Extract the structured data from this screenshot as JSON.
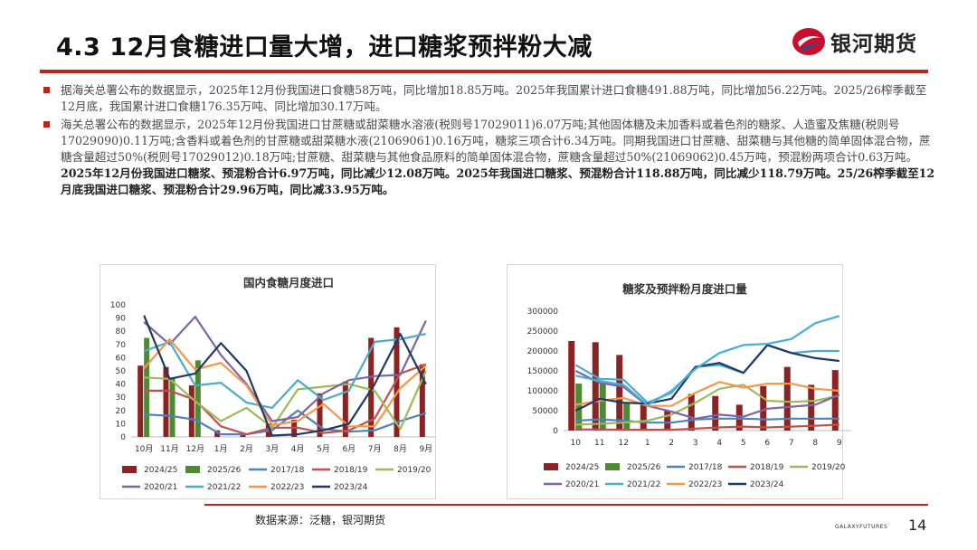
{
  "slide": {
    "title": "4.3 12月食糖进口量大增，进口糖浆预拌粉大减",
    "logo_text": "银河期货",
    "brand_color": "#b22a1e",
    "bullets": [
      {
        "text": "据海关总署公布的数据显示，2025年12月份我国进口食糖58万吨，同比增加18.85万吨。2025年我国累计进口食糖491.88万吨，同比增加56.22万吨。2025/26榨季截至12月底，我国累计进口食糖176.35万吨、同比增加30.17万吨。"
      },
      {
        "text": "海关总署公布的数据显示，2025年12月份我国进口甘蔗糖或甜菜糖水溶液(税则号17029011)6.07万吨;其他固体糖及未加香料或着色剂的糖浆、人造蜜及焦糖(税则号17029090)0.11万吨;含香料或着色剂的甘蔗糖或甜菜糖水液(21069061)0.16万吨，糖浆三项合计6.34万吨。同期我国进口甘蔗糖、甜菜糖与其他糖的简单固体混合物，蔗糖含量超过50%(税则号17029012)0.18万吨;甘蔗糖、甜菜糖与其他食品原料的简单固体混合物，蔗糖含量超过50%(21069062)0.45万吨，预混粉两项合计0.63万吨。",
        "bold": "2025年12月份我国进口糖浆、预混粉合计6.97万吨，同比减少12.08万吨。2025年我国进口糖浆、预混粉合计118.88万吨，同比减少118.79万吨。25/26榨季截至12月底我国进口糖浆、预混粉合计29.96万吨，同比减33.95万吨。"
      }
    ],
    "source": "数据来源：泛糖，银河期货",
    "footer_brand": "GALAXYFUTURES",
    "page_number": "14"
  },
  "chart_data": [
    {
      "type": "bar+line",
      "title": "国内食糖月度进口",
      "categories": [
        "10月",
        "11月",
        "12月",
        "1月",
        "2月",
        "3月",
        "4月",
        "5月",
        "6月",
        "7月",
        "8月",
        "9月"
      ],
      "ylim": [
        0,
        100
      ],
      "yticks": [
        0,
        10,
        20,
        30,
        40,
        50,
        60,
        70,
        80,
        90,
        100
      ],
      "legend_position": "bottom",
      "grid": false,
      "bar_series": [
        {
          "name": "2024/25",
          "color": "#8b2323",
          "values": [
            54,
            53,
            39,
            5,
            2,
            10,
            13,
            33,
            42,
            75,
            83,
            55
          ]
        },
        {
          "name": "2025/26",
          "color": "#4e8a31",
          "values": [
            75,
            45,
            58,
            null,
            null,
            null,
            null,
            null,
            null,
            null,
            null,
            null
          ]
        }
      ],
      "line_series": [
        {
          "name": "2017/18",
          "color": "#4f81bd",
          "values": [
            17,
            16,
            13,
            2,
            2,
            5,
            20,
            6,
            4,
            5,
            12,
            18
          ]
        },
        {
          "name": "2018/19",
          "color": "#c0504d",
          "values": [
            35,
            35,
            28,
            8,
            2,
            7,
            7,
            3,
            5,
            14,
            48,
            55
          ]
        },
        {
          "name": "2019/20",
          "color": "#9bbb59",
          "values": [
            45,
            44,
            27,
            12,
            22,
            7,
            36,
            38,
            40,
            35,
            6,
            50
          ]
        },
        {
          "name": "2020/21",
          "color": "#8064a2",
          "values": [
            87,
            70,
            91,
            62,
            40,
            12,
            15,
            33,
            43,
            46,
            47,
            88
          ]
        },
        {
          "name": "2021/22",
          "color": "#4bacc6",
          "values": [
            65,
            72,
            39,
            41,
            26,
            22,
            43,
            28,
            35,
            72,
            74,
            78
          ]
        },
        {
          "name": "2022/23",
          "color": "#f79646",
          "values": [
            52,
            74,
            51,
            56,
            39,
            9,
            12,
            25,
            8,
            8,
            37,
            54
          ]
        },
        {
          "name": "2023/24",
          "color": "#1f3864",
          "values": [
            92,
            44,
            48,
            71,
            50,
            1,
            2,
            5,
            10,
            40,
            78,
            40
          ]
        }
      ]
    },
    {
      "type": "bar+line",
      "title": "糖浆及预拌粉月度进口量",
      "categories": [
        "10",
        "11",
        "12",
        "1",
        "2",
        "3",
        "4",
        "5",
        "6",
        "7",
        "8",
        "9"
      ],
      "ylim": [
        0,
        300000
      ],
      "yticks": [
        0,
        50000,
        100000,
        150000,
        200000,
        250000,
        300000
      ],
      "legend_position": "bottom",
      "grid": false,
      "bar_series": [
        {
          "name": "2024/25",
          "color": "#8b2323",
          "values": [
            225000,
            222000,
            190000,
            68000,
            50000,
            92000,
            87000,
            65000,
            112000,
            160000,
            115000,
            152000
          ]
        },
        {
          "name": "2025/26",
          "color": "#4e8a31",
          "values": [
            118000,
            120000,
            70000,
            null,
            null,
            null,
            null,
            null,
            null,
            null,
            null,
            null
          ]
        }
      ],
      "line_series": [
        {
          "name": "2017/18",
          "color": "#4f81bd",
          "values": [
            25000,
            28000,
            25000,
            20000,
            20000,
            28000,
            30000,
            30000,
            28000,
            30000,
            30000,
            30000
          ]
        },
        {
          "name": "2018/19",
          "color": "#c0504d",
          "values": [
            3000,
            3000,
            2000,
            2000,
            2000,
            5000,
            8000,
            10000,
            8000,
            10000,
            12000,
            15000
          ]
        },
        {
          "name": "2019/20",
          "color": "#9bbb59",
          "values": [
            15000,
            17000,
            20000,
            25000,
            40000,
            70000,
            105000,
            115000,
            75000,
            72000,
            75000,
            88000
          ]
        },
        {
          "name": "2020/21",
          "color": "#8064a2",
          "values": [
            150000,
            120000,
            110000,
            62000,
            48000,
            30000,
            40000,
            35000,
            55000,
            60000,
            65000,
            90000
          ]
        },
        {
          "name": "2021/22",
          "color": "#4bacc6",
          "values": [
            165000,
            130000,
            128000,
            70000,
            95000,
            160000,
            165000,
            145000,
            215000,
            195000,
            200000,
            200000
          ]
        },
        {
          "name": "2022/23",
          "color": "#f79646",
          "values": [
            65000,
            75000,
            82000,
            62000,
            62000,
            95000,
            122000,
            108000,
            118000,
            118000,
            105000,
            100000
          ]
        },
        {
          "name": "2023/24",
          "color": "#1f3864",
          "values": [
            50000,
            80000,
            70000,
            68000,
            80000,
            160000,
            170000,
            145000,
            215000,
            195000,
            182000,
            175000
          ]
        },
        {
          "name": "2024/25 line",
          "color": "#45aedb",
          "values": [
            138000,
            125000,
            115000,
            64000,
            100000,
            155000,
            195000,
            215000,
            218000,
            230000,
            270000,
            288000
          ]
        }
      ]
    }
  ]
}
